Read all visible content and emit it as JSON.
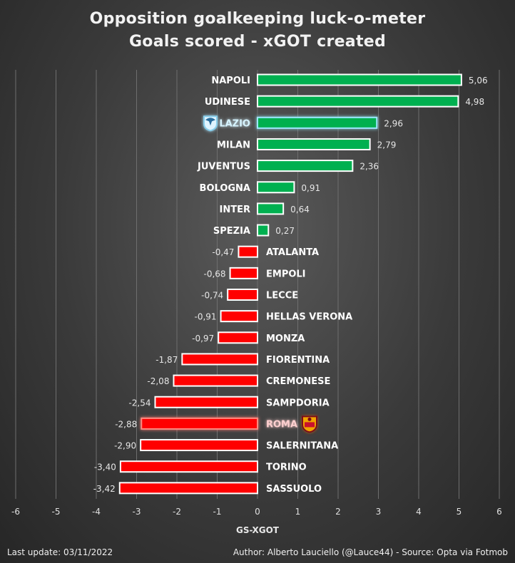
{
  "title": "Opposition goalkeeping luck-o-meter",
  "subtitle": "Goals scored - xGOT created",
  "footer": {
    "left": "Last update: 03/11/2022",
    "right": "Author: Alberto Lauciello (@Lauce44) - Source: Opta via Fotmob"
  },
  "colors": {
    "positive": "#00b050",
    "negative": "#ff0000",
    "highlight_positive": "#9fe6ff",
    "highlight_negative": "#ff8a80"
  },
  "chart_data": {
    "type": "bar",
    "orientation": "horizontal",
    "xlabel": "GS-XGOT",
    "xlim": [
      -6,
      6
    ],
    "xticks": [
      "-6",
      "-5",
      "-4",
      "-3",
      "-2",
      "-1",
      "0",
      "1",
      "2",
      "3",
      "4",
      "5",
      "6"
    ],
    "grid": true,
    "categories": [
      "NAPOLI",
      "UDINESE",
      "LAZIO",
      "MILAN",
      "JUVENTUS",
      "BOLOGNA",
      "INTER",
      "SPEZIA",
      "ATALANTA",
      "EMPOLI",
      "LECCE",
      "HELLAS VERONA",
      "MONZA",
      "FIORENTINA",
      "CREMONESE",
      "SAMPDORIA",
      "ROMA",
      "SALERNITANA",
      "TORINO",
      "SASSUOLO"
    ],
    "values": [
      5.06,
      4.98,
      2.96,
      2.79,
      2.36,
      0.91,
      0.64,
      0.27,
      -0.47,
      -0.68,
      -0.74,
      -0.91,
      -0.97,
      -1.87,
      -2.08,
      -2.54,
      -2.88,
      -2.9,
      -3.4,
      -3.42
    ],
    "value_labels": [
      "5,06",
      "4,98",
      "2,96",
      "2,79",
      "2,36",
      "0,91",
      "0,64",
      "0,27",
      "-0,47",
      "-0,68",
      "-0,74",
      "-0,91",
      "-0,97",
      "-1,87",
      "-2,08",
      "-2,54",
      "-2,88",
      "-2,90",
      "-3,40",
      "-3,42"
    ],
    "highlighted": [
      "LAZIO",
      "ROMA"
    ],
    "logos": {
      "LAZIO": {
        "icon": "lazio-eagle-crest-icon",
        "color": "#87ceeb"
      },
      "ROMA": {
        "icon": "roma-wolf-crest-icon",
        "color": "#c8102e"
      }
    }
  }
}
